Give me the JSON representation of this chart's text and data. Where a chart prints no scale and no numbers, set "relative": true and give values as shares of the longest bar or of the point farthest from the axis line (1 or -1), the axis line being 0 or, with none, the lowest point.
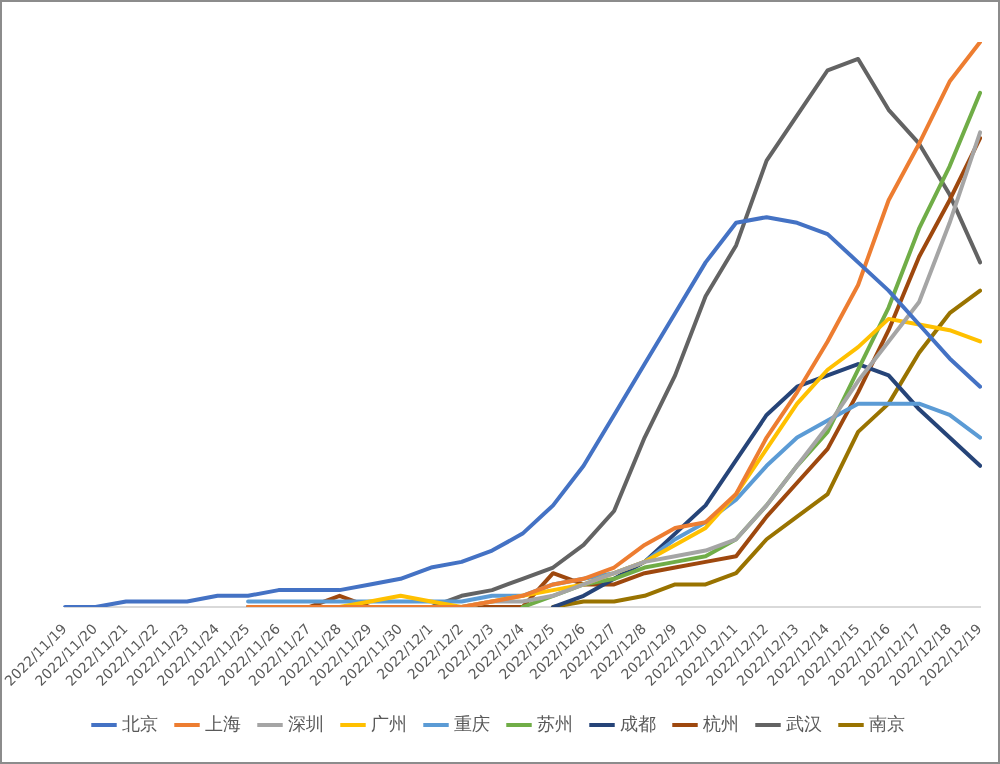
{
  "chart_data": {
    "type": "line",
    "relative": true,
    "legend": "bottom",
    "grid": false,
    "marker": "none",
    "line_style": "solid",
    "categories": [
      "2022/11/19",
      "2022/11/20",
      "2022/11/21",
      "2022/11/22",
      "2022/11/23",
      "2022/11/24",
      "2022/11/25",
      "2022/11/26",
      "2022/11/27",
      "2022/11/28",
      "2022/11/29",
      "2022/11/30",
      "2022/12/1",
      "2022/12/2",
      "2022/12/3",
      "2022/12/4",
      "2022/12/5",
      "2022/12/6",
      "2022/12/7",
      "2022/12/8",
      "2022/12/9",
      "2022/12/10",
      "2022/12/11",
      "2022/12/12",
      "2022/12/13",
      "2022/12/14",
      "2022/12/15",
      "2022/12/16",
      "2022/12/17",
      "2022/12/18",
      "2022/12/19"
    ],
    "series": [
      {
        "name": "北京",
        "color": "#4472c4",
        "values": [
          0,
          0,
          0.01,
          0.01,
          0.01,
          0.02,
          0.02,
          0.03,
          0.03,
          0.03,
          0.04,
          0.05,
          0.07,
          0.08,
          0.1,
          0.13,
          0.18,
          0.25,
          0.34,
          0.43,
          0.52,
          0.61,
          0.68,
          0.69,
          0.68,
          0.66,
          0.61,
          0.56,
          0.5,
          0.44,
          0.39
        ]
      },
      {
        "name": "上海",
        "color": "#ed7d31",
        "values": [
          null,
          null,
          null,
          null,
          null,
          null,
          0,
          0,
          0,
          0,
          0,
          0,
          0,
          0,
          0.01,
          0.02,
          0.04,
          0.05,
          0.07,
          0.11,
          0.14,
          0.15,
          0.2,
          0.3,
          0.38,
          0.47,
          0.57,
          0.72,
          0.82,
          0.93,
          1
        ]
      },
      {
        "name": "深圳",
        "color": "#a5a5a5",
        "values": [
          null,
          null,
          null,
          null,
          null,
          null,
          0,
          0,
          0,
          0,
          0,
          0,
          0,
          0,
          0.01,
          0.01,
          0.02,
          0.04,
          0.06,
          0.08,
          0.09,
          0.1,
          0.12,
          0.18,
          0.25,
          0.32,
          0.4,
          0.47,
          0.54,
          0.68,
          0.84
        ]
      },
      {
        "name": "广州",
        "color": "#ffc000",
        "values": [
          null,
          null,
          null,
          null,
          null,
          null,
          null,
          null,
          null,
          0,
          0.01,
          0.02,
          0.01,
          0,
          0.01,
          0.02,
          0.03,
          0.04,
          0.06,
          0.08,
          0.11,
          0.14,
          0.2,
          0.28,
          0.36,
          0.42,
          0.46,
          0.51,
          0.5,
          0.49,
          0.47
        ]
      },
      {
        "name": "重庆",
        "color": "#5b9bd5",
        "values": [
          null,
          null,
          null,
          null,
          null,
          null,
          0.01,
          0.01,
          0.01,
          0.01,
          0.01,
          0.01,
          0.01,
          0.01,
          0.02,
          0.02,
          0.04,
          0.05,
          0.06,
          0.08,
          0.12,
          0.15,
          0.19,
          0.25,
          0.3,
          0.33,
          0.36,
          0.36,
          0.36,
          0.34,
          0.3
        ]
      },
      {
        "name": "苏州",
        "color": "#70ad47",
        "values": [
          null,
          null,
          null,
          null,
          null,
          null,
          null,
          null,
          null,
          null,
          null,
          null,
          null,
          null,
          null,
          0,
          0.02,
          0.04,
          0.05,
          0.07,
          0.08,
          0.09,
          0.12,
          0.18,
          0.25,
          0.31,
          0.42,
          0.53,
          0.67,
          0.78,
          0.91
        ]
      },
      {
        "name": "成都",
        "color": "#264478",
        "values": [
          null,
          null,
          null,
          null,
          null,
          null,
          null,
          null,
          null,
          null,
          null,
          null,
          null,
          null,
          null,
          null,
          0,
          0.02,
          0.05,
          0.08,
          0.13,
          0.18,
          0.26,
          0.34,
          0.39,
          0.41,
          0.43,
          0.41,
          0.35,
          0.3,
          0.25
        ]
      },
      {
        "name": "杭州",
        "color": "#9e480e",
        "values": [
          null,
          null,
          null,
          null,
          null,
          null,
          0,
          0,
          0,
          0.02,
          0,
          0,
          0,
          0,
          0,
          0,
          0.06,
          0.04,
          0.04,
          0.06,
          0.07,
          0.08,
          0.09,
          0.16,
          0.22,
          0.28,
          0.38,
          0.49,
          0.62,
          0.72,
          0.83
        ]
      },
      {
        "name": "武汉",
        "color": "#636363",
        "values": [
          null,
          null,
          null,
          null,
          null,
          null,
          0,
          0,
          0,
          0,
          0,
          0,
          0,
          0.02,
          0.03,
          0.05,
          0.07,
          0.11,
          0.17,
          0.3,
          0.41,
          0.55,
          0.64,
          0.79,
          0.87,
          0.95,
          0.97,
          0.88,
          0.82,
          0.73,
          0.61
        ]
      },
      {
        "name": "南京",
        "color": "#997300",
        "values": [
          null,
          null,
          null,
          null,
          null,
          null,
          null,
          null,
          null,
          null,
          null,
          null,
          null,
          null,
          null,
          null,
          0,
          0.01,
          0.01,
          0.02,
          0.04,
          0.04,
          0.06,
          0.12,
          0.16,
          0.2,
          0.31,
          0.36,
          0.45,
          0.52,
          0.56
        ]
      }
    ]
  }
}
